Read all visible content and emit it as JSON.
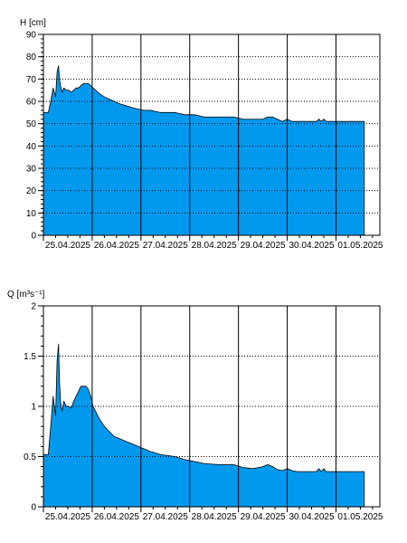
{
  "chart_data": [
    {
      "type": "area",
      "ylabel": "H [cm]",
      "ylim": [
        0,
        90
      ],
      "yticks": [
        0,
        10,
        20,
        30,
        40,
        50,
        60,
        70,
        80,
        90
      ],
      "ytick_labels": [
        "0",
        "10",
        "20",
        "30",
        "40",
        "50",
        "60",
        "70",
        "80",
        "90"
      ],
      "xlim": [
        0,
        6.9
      ],
      "xtick_labels": [
        "25.04.2025",
        "26.04.2025",
        "27.04.2025",
        "28.04.2025",
        "29.04.2025",
        "30.04.2025",
        "01.05.2025"
      ],
      "fill_color": "#0099ee",
      "grid": true,
      "series": [
        {
          "x": [
            0,
            0.1,
            0.15,
            0.2,
            0.25,
            0.28,
            0.31,
            0.33,
            0.35,
            0.38,
            0.42,
            0.47,
            0.52,
            0.57,
            0.62,
            0.67,
            0.72,
            0.77,
            0.82,
            0.87,
            0.92,
            0.97,
            1.02,
            1.07,
            1.12,
            1.18,
            1.25,
            1.35,
            1.45,
            1.55,
            1.7,
            1.85,
            2.05,
            2.2,
            2.4,
            2.7,
            2.9,
            3.1,
            3.3,
            3.6,
            3.9,
            4.1,
            4.3,
            4.4,
            4.5,
            4.6,
            4.7,
            4.8,
            4.9,
            5.0,
            5.1,
            5.2,
            5.6,
            5.65,
            5.7,
            5.75,
            5.8,
            6.2,
            6.58
          ],
          "y": [
            55,
            55,
            60,
            66,
            62,
            73,
            76,
            70,
            67,
            64,
            66,
            65,
            65,
            64,
            65,
            66,
            66,
            67,
            68,
            68,
            68,
            67,
            66,
            65,
            64,
            63,
            62,
            61,
            60,
            59,
            58,
            57,
            56,
            56,
            55,
            55,
            54,
            54,
            53,
            53,
            53,
            52,
            52,
            52,
            52,
            53,
            53,
            52,
            51,
            52,
            51,
            51,
            51,
            52,
            51,
            52,
            51,
            51,
            51
          ]
        }
      ]
    },
    {
      "type": "area",
      "ylabel": "Q [m³s⁻¹]",
      "ylim": [
        0,
        2
      ],
      "yticks": [
        0,
        0.5,
        1,
        1.5,
        2
      ],
      "ytick_labels": [
        "0",
        "0.5",
        "1",
        "1.5",
        "2"
      ],
      "xlim": [
        0,
        6.9
      ],
      "xtick_labels": [
        "25.04.2025",
        "26.04.2025",
        "27.04.2025",
        "28.04.2025",
        "29.04.2025",
        "30.04.2025",
        "01.05.2025"
      ],
      "fill_color": "#0099ee",
      "grid": true,
      "series": [
        {
          "x": [
            0,
            0.1,
            0.15,
            0.2,
            0.25,
            0.28,
            0.31,
            0.33,
            0.35,
            0.38,
            0.42,
            0.47,
            0.52,
            0.57,
            0.62,
            0.67,
            0.72,
            0.77,
            0.82,
            0.87,
            0.92,
            0.97,
            1.02,
            1.07,
            1.12,
            1.18,
            1.25,
            1.35,
            1.45,
            1.55,
            1.7,
            1.85,
            2.05,
            2.2,
            2.4,
            2.7,
            2.9,
            3.1,
            3.3,
            3.6,
            3.9,
            4.1,
            4.3,
            4.4,
            4.5,
            4.6,
            4.7,
            4.8,
            4.9,
            5.0,
            5.1,
            5.2,
            5.6,
            5.65,
            5.7,
            5.75,
            5.8,
            6.2,
            6.58
          ],
          "y": [
            0.52,
            0.52,
            0.8,
            1.1,
            0.9,
            1.45,
            1.62,
            1.25,
            1.05,
            0.95,
            1.05,
            1.0,
            1.0,
            0.98,
            1.05,
            1.1,
            1.15,
            1.2,
            1.2,
            1.2,
            1.17,
            1.1,
            1.0,
            0.95,
            0.9,
            0.85,
            0.8,
            0.75,
            0.7,
            0.68,
            0.65,
            0.62,
            0.58,
            0.55,
            0.52,
            0.5,
            0.47,
            0.45,
            0.43,
            0.42,
            0.42,
            0.39,
            0.38,
            0.39,
            0.4,
            0.42,
            0.4,
            0.37,
            0.36,
            0.38,
            0.36,
            0.35,
            0.35,
            0.38,
            0.35,
            0.38,
            0.35,
            0.35,
            0.35
          ]
        }
      ]
    }
  ]
}
